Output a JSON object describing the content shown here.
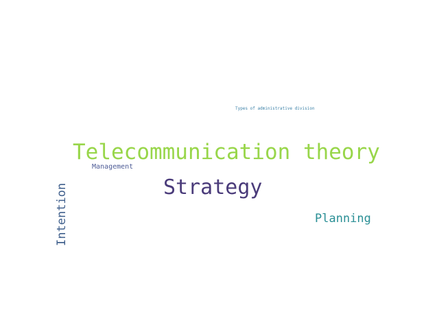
{
  "words": [
    {
      "text": "Telecommunication theory",
      "color": "#98d64a"
    },
    {
      "text": "Strategy",
      "color": "#4a3b7a"
    },
    {
      "text": "Planning",
      "color": "#2a8f95"
    },
    {
      "text": "Management",
      "color": "#4e5c96"
    },
    {
      "text": "Types of administrative division",
      "color": "#3d82a8"
    },
    {
      "text": "Intention",
      "color": "#3f5f8c"
    }
  ]
}
